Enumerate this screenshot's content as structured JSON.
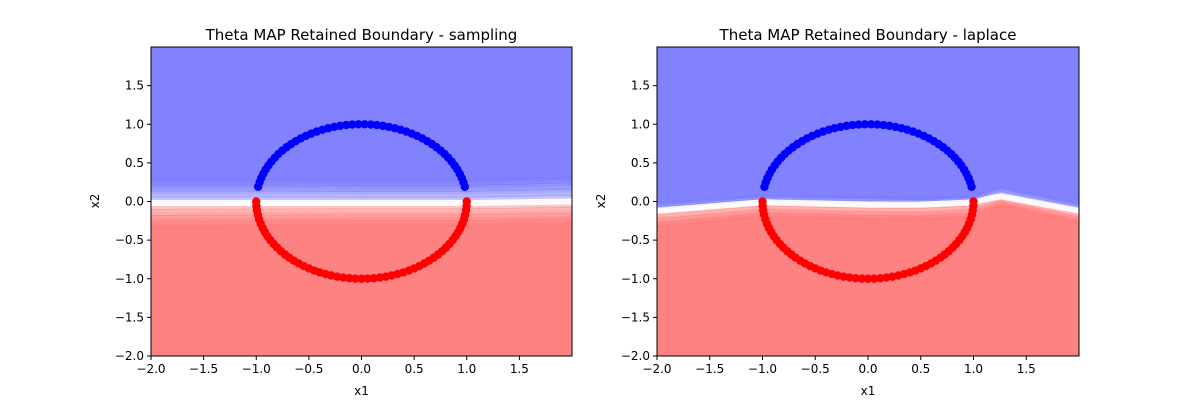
{
  "figure": {
    "background": "#ffffff"
  },
  "chart_data": [
    {
      "type": "scatter",
      "title": "Theta MAP Retained Boundary - sampling",
      "xlabel": "x1",
      "ylabel": "x2",
      "xlim": [
        -2.0,
        2.0
      ],
      "ylim": [
        -2.0,
        2.0
      ],
      "xticks": [
        "−2.0",
        "−1.5",
        "−1.0",
        "−0.5",
        "0.0",
        "0.5",
        "1.0",
        "1.5"
      ],
      "yticks": [
        "−2.0",
        "−1.5",
        "−1.0",
        "−0.5",
        "0.0",
        "0.5",
        "1.0",
        "1.5"
      ],
      "grid": false,
      "boundary": {
        "x": [
          -2.0,
          -1.0,
          0.0,
          1.0,
          2.0
        ],
        "y": [
          -0.02,
          -0.02,
          -0.02,
          -0.02,
          0.0
        ],
        "band_upper": [
          0.29,
          0.29,
          0.28,
          0.28,
          0.32
        ],
        "band_lower": [
          -0.34,
          -0.33,
          -0.32,
          -0.32,
          -0.3
        ]
      },
      "series": [
        {
          "color": "#0000ff",
          "angle_start_deg": 11,
          "angle_end_deg": 169,
          "count": 48,
          "radius": 1.0,
          "center": [
            0.0,
            0.0
          ]
        },
        {
          "color": "#ff0000",
          "angle_start_deg": 180,
          "angle_end_deg": 360,
          "count": 55,
          "radius": 1.0,
          "center": [
            0.0,
            0.0
          ]
        }
      ]
    },
    {
      "type": "scatter",
      "title": "Theta MAP Retained Boundary - laplace",
      "xlabel": "x1",
      "ylabel": "x2",
      "xlim": [
        -2.0,
        2.0
      ],
      "ylim": [
        -2.0,
        2.0
      ],
      "xticks": [
        "−2.0",
        "−1.5",
        "−1.0",
        "−0.5",
        "0.0",
        "0.5",
        "1.0",
        "1.5"
      ],
      "yticks": [
        "−2.0",
        "−1.5",
        "−1.0",
        "−0.5",
        "0.0",
        "0.5",
        "1.0",
        "1.5"
      ],
      "grid": false,
      "boundary": {
        "x": [
          -2.0,
          -1.0,
          0.0,
          0.5,
          1.0,
          1.25,
          2.0
        ],
        "y": [
          -0.12,
          -0.01,
          -0.04,
          -0.04,
          -0.01,
          0.07,
          -0.12
        ],
        "band_upper": [
          -0.02,
          0.08,
          0.06,
          0.04,
          0.07,
          0.2,
          -0.02
        ],
        "band_lower": [
          -0.33,
          -0.2,
          -0.23,
          -0.24,
          -0.2,
          -0.05,
          -0.28
        ]
      },
      "series": [
        {
          "color": "#0000ff",
          "angle_start_deg": 11,
          "angle_end_deg": 169,
          "count": 48,
          "radius": 1.0,
          "center": [
            0.0,
            0.0
          ]
        },
        {
          "color": "#ff0000",
          "angle_start_deg": 180,
          "angle_end_deg": 360,
          "count": 55,
          "radius": 1.0,
          "center": [
            0.0,
            0.0
          ]
        }
      ]
    }
  ],
  "colors": {
    "upper_region": "#8282ff",
    "lower_region": "#ff8282",
    "boundary_mid": "#ffffff",
    "blue_points": "#0000ff",
    "red_points": "#ff0000"
  }
}
